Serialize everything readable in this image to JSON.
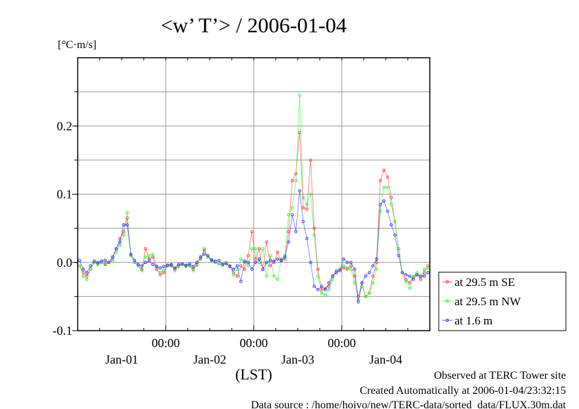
{
  "chart_data": {
    "type": "line",
    "title": "<w’ T’> / 2006-01-04",
    "ylabel": "[°C·m/s]",
    "xlabel": "(LST)",
    "ylim": [
      -0.1,
      0.3
    ],
    "y_ticks": [
      {
        "value": 0.2,
        "label": "0.2"
      },
      {
        "value": 0.1,
        "label": "0.1"
      },
      {
        "value": 0.0,
        "label": "0.0"
      },
      {
        "value": -0.1,
        "label": "-0.1"
      }
    ],
    "y_grid_step": 0.05,
    "x_unit": "hours since Jan-01 00:00",
    "xlim": [
      0,
      96
    ],
    "x_minor_tick_step_hours": 6,
    "x_time_ticks": [
      {
        "value": 24,
        "label": "00:00"
      },
      {
        "value": 48,
        "label": "00:00"
      },
      {
        "value": 72,
        "label": "00:00"
      }
    ],
    "x_date_labels": [
      {
        "value": 12,
        "label": "Jan-01"
      },
      {
        "value": 36,
        "label": "Jan-02"
      },
      {
        "value": 60,
        "label": "Jan-03"
      },
      {
        "value": 84,
        "label": "Jan-04"
      }
    ],
    "x_start": 0.5,
    "x_step": 1,
    "grid": true,
    "legend_position": "right-bottom-outside",
    "series": [
      {
        "name": "at 29.5 m SE",
        "color": "#ff3333",
        "values": [
          -0.005,
          -0.015,
          -0.02,
          -0.01,
          0.0,
          -0.002,
          0.0,
          -0.003,
          0.0,
          0.005,
          0.02,
          0.035,
          0.045,
          0.065,
          0.01,
          0.0,
          -0.005,
          -0.01,
          0.02,
          0.005,
          0.008,
          -0.01,
          -0.018,
          -0.015,
          -0.005,
          -0.005,
          -0.01,
          -0.005,
          -0.003,
          -0.005,
          -0.004,
          -0.01,
          -0.003,
          0.005,
          0.018,
          0.008,
          0.003,
          0.0,
          -0.002,
          -0.003,
          0.0,
          -0.005,
          -0.015,
          -0.02,
          -0.005,
          -0.01,
          0.01,
          0.045,
          0.005,
          0.02,
          -0.01,
          0.03,
          -0.005,
          0.0,
          0.015,
          0.002,
          0.005,
          0.045,
          0.12,
          0.13,
          0.19,
          0.08,
          0.078,
          0.15,
          0.05,
          -0.01,
          -0.04,
          -0.038,
          -0.035,
          -0.02,
          -0.012,
          -0.01,
          -0.008,
          -0.01,
          -0.005,
          -0.02,
          -0.05,
          -0.03,
          -0.05,
          -0.045,
          -0.02,
          0.0,
          0.12,
          0.135,
          0.125,
          0.095,
          0.06,
          0.02,
          -0.015,
          -0.025,
          -0.03,
          -0.022,
          -0.018,
          -0.025,
          -0.015,
          -0.005
        ]
      },
      {
        "name": "at 29.5 m NW",
        "color": "#33ee33",
        "values": [
          -0.005,
          -0.02,
          -0.025,
          -0.01,
          0.0,
          -0.003,
          0.0,
          -0.002,
          0.0,
          0.002,
          0.015,
          0.025,
          0.04,
          0.073,
          0.01,
          0.0,
          -0.005,
          -0.012,
          0.008,
          0.01,
          0.012,
          -0.005,
          -0.015,
          -0.012,
          -0.005,
          -0.004,
          -0.012,
          -0.006,
          -0.003,
          -0.006,
          -0.005,
          -0.012,
          -0.004,
          0.006,
          0.02,
          0.008,
          0.002,
          0.0,
          -0.002,
          -0.004,
          0.0,
          -0.006,
          -0.018,
          -0.01,
          0.005,
          0.0,
          -0.005,
          0.02,
          0.02,
          0.0,
          0.02,
          -0.02,
          0.01,
          -0.02,
          -0.025,
          0.005,
          0.01,
          0.07,
          0.08,
          0.12,
          0.245,
          0.095,
          0.085,
          0.1,
          0.04,
          -0.02,
          -0.045,
          -0.048,
          -0.04,
          -0.025,
          -0.015,
          -0.01,
          -0.005,
          -0.008,
          -0.01,
          -0.03,
          -0.055,
          -0.035,
          -0.05,
          -0.045,
          -0.03,
          -0.01,
          0.075,
          0.11,
          0.11,
          0.085,
          0.06,
          0.02,
          -0.015,
          -0.028,
          -0.038,
          -0.02,
          -0.015,
          -0.022,
          -0.01,
          -0.008
        ]
      },
      {
        "name": "at 1.6 m",
        "color": "#3333ff",
        "values": [
          0.003,
          -0.01,
          -0.015,
          -0.005,
          0.002,
          0.0,
          0.002,
          0.003,
          0.0,
          0.008,
          0.02,
          0.03,
          0.055,
          0.055,
          0.012,
          0.003,
          -0.003,
          -0.005,
          0.0,
          0.002,
          -0.003,
          -0.006,
          -0.008,
          -0.006,
          -0.004,
          -0.003,
          -0.008,
          -0.003,
          -0.002,
          -0.004,
          -0.002,
          -0.006,
          0.0,
          0.008,
          0.012,
          0.01,
          0.004,
          0.002,
          0.003,
          -0.003,
          -0.002,
          -0.006,
          -0.01,
          -0.005,
          -0.028,
          0.002,
          0.0,
          -0.01,
          0.0,
          0.005,
          -0.01,
          0.0,
          0.003,
          0.002,
          0.005,
          0.003,
          0.008,
          0.03,
          0.07,
          0.045,
          0.105,
          0.06,
          0.035,
          0.0,
          -0.035,
          -0.04,
          -0.035,
          -0.04,
          -0.03,
          -0.02,
          -0.015,
          -0.012,
          0.005,
          0.0,
          0.0,
          -0.01,
          -0.058,
          -0.03,
          -0.02,
          -0.015,
          -0.005,
          0.005,
          0.085,
          0.09,
          0.075,
          0.055,
          0.04,
          0.01,
          -0.015,
          -0.018,
          -0.02,
          -0.025,
          -0.018,
          -0.02,
          -0.02,
          -0.015
        ]
      }
    ]
  },
  "footer": {
    "site": "Observed at TERC Tower site",
    "created": "Created Automatically at 2006-01-04/23:32:15",
    "source": "Data source : /home/hoivo/new/TERC-data/sorted_data/FLUX.30m.dat"
  }
}
